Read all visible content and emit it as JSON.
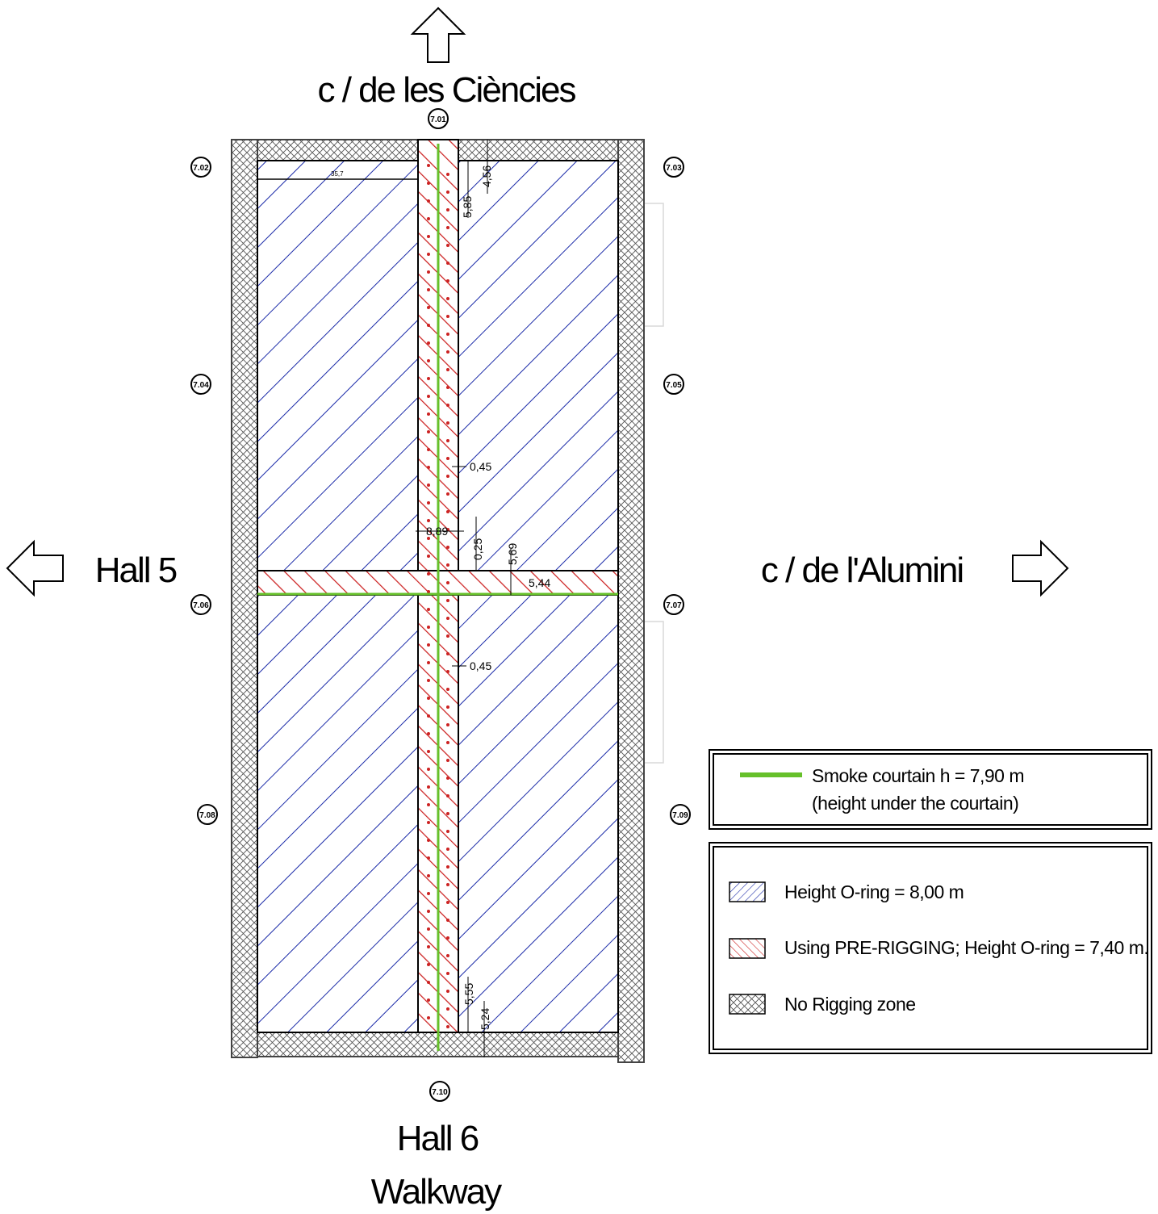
{
  "labels": {
    "north": "c / de les Ciències",
    "west": "Hall 5",
    "east": "c / de l'Alumini",
    "south_line1": "Hall 6",
    "south_line2": "Walkway"
  },
  "grid_markers": [
    "7.01",
    "7.02",
    "7.03",
    "7.04",
    "7.05",
    "7.06",
    "7.07",
    "7.08",
    "7.09",
    "7.10"
  ],
  "dimensions": {
    "d1": "4,56",
    "d2": "5,85",
    "d3": "0,45",
    "d4": "8,89",
    "d5": "0,25",
    "d6": "5,69",
    "d7": "5,44",
    "d8": "0,45",
    "d9": "5,55",
    "d10": "5,24",
    "d11": "35,7"
  },
  "legend": {
    "smoke_line1": "Smoke courtain h = 7,90 m",
    "smoke_line2": "(height under the courtain)",
    "item_blue": "Height O-ring = 8,00 m",
    "item_red": "Using PRE-RIGGING; Height O-ring = 7,40 m.",
    "item_cross": "No Rigging zone"
  },
  "colors": {
    "blue_hatch": "#1a2aa8",
    "red_hatch": "#cc2222",
    "smoke_green": "#66c02a",
    "wall_gray": "#666666"
  }
}
